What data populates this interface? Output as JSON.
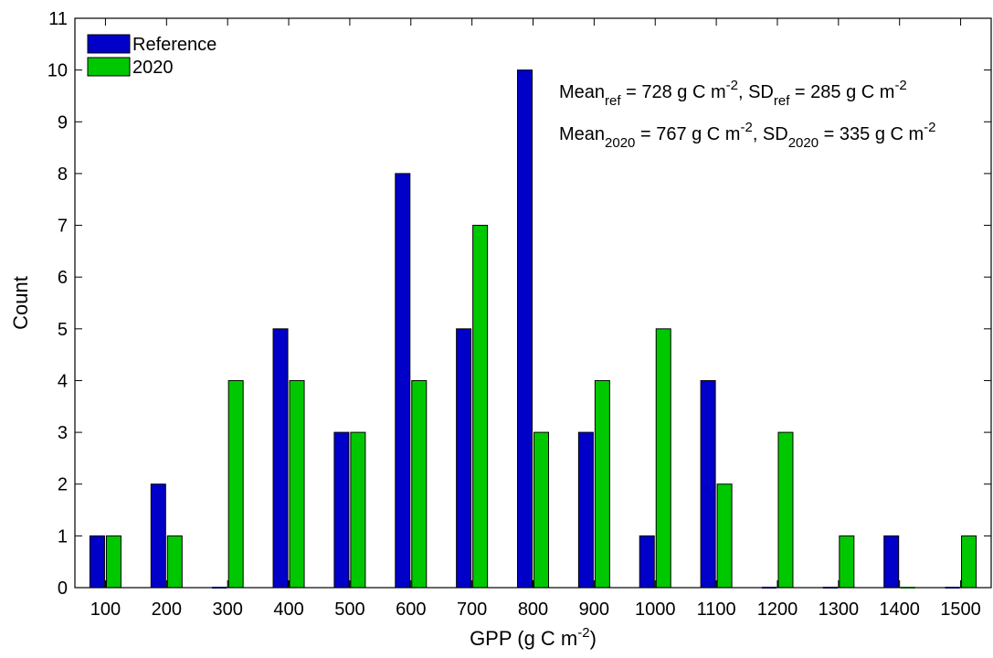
{
  "chart_data": {
    "type": "bar",
    "categories": [
      "100",
      "200",
      "300",
      "400",
      "500",
      "600",
      "700",
      "800",
      "900",
      "1000",
      "1100",
      "1200",
      "1300",
      "1400",
      "1500"
    ],
    "series": [
      {
        "name": "Reference",
        "color": "#0000c8",
        "values": [
          1,
          2,
          0,
          5,
          3,
          8,
          5,
          10,
          3,
          1,
          4,
          0,
          0,
          1,
          0
        ]
      },
      {
        "name": "2020",
        "color": "#00c800",
        "values": [
          1,
          1,
          4,
          4,
          3,
          4,
          7,
          3,
          4,
          5,
          2,
          3,
          1,
          0,
          1
        ]
      }
    ],
    "xlabel": {
      "base": "GPP (g C m",
      "sup": "-2",
      "end": ")"
    },
    "ylabel": "Count",
    "ylim": [
      0,
      11
    ],
    "yticks": [
      "0",
      "1",
      "2",
      "3",
      "4",
      "5",
      "6",
      "7",
      "8",
      "9",
      "10",
      "11"
    ],
    "legend": {
      "placement": "top-left",
      "entries": [
        "Reference",
        "2020"
      ]
    },
    "annotations": [
      {
        "parts": [
          {
            "t": "Mean"
          },
          {
            "t": "ref",
            "sub": true
          },
          {
            "t": " = 728 g C m"
          },
          {
            "t": "-2",
            "sup": true
          },
          {
            "t": ", SD"
          },
          {
            "t": "ref",
            "sub": true
          },
          {
            "t": " = 285 g C m"
          },
          {
            "t": "-2",
            "sup": true
          }
        ]
      },
      {
        "parts": [
          {
            "t": "Mean"
          },
          {
            "t": "2020",
            "sub": true
          },
          {
            "t": " = 767 g C m"
          },
          {
            "t": "-2",
            "sup": true
          },
          {
            "t": ", SD"
          },
          {
            "t": "2020",
            "sub": true
          },
          {
            "t": " = 335 g C m"
          },
          {
            "t": "-2",
            "sup": true
          }
        ]
      }
    ],
    "grid": false
  }
}
